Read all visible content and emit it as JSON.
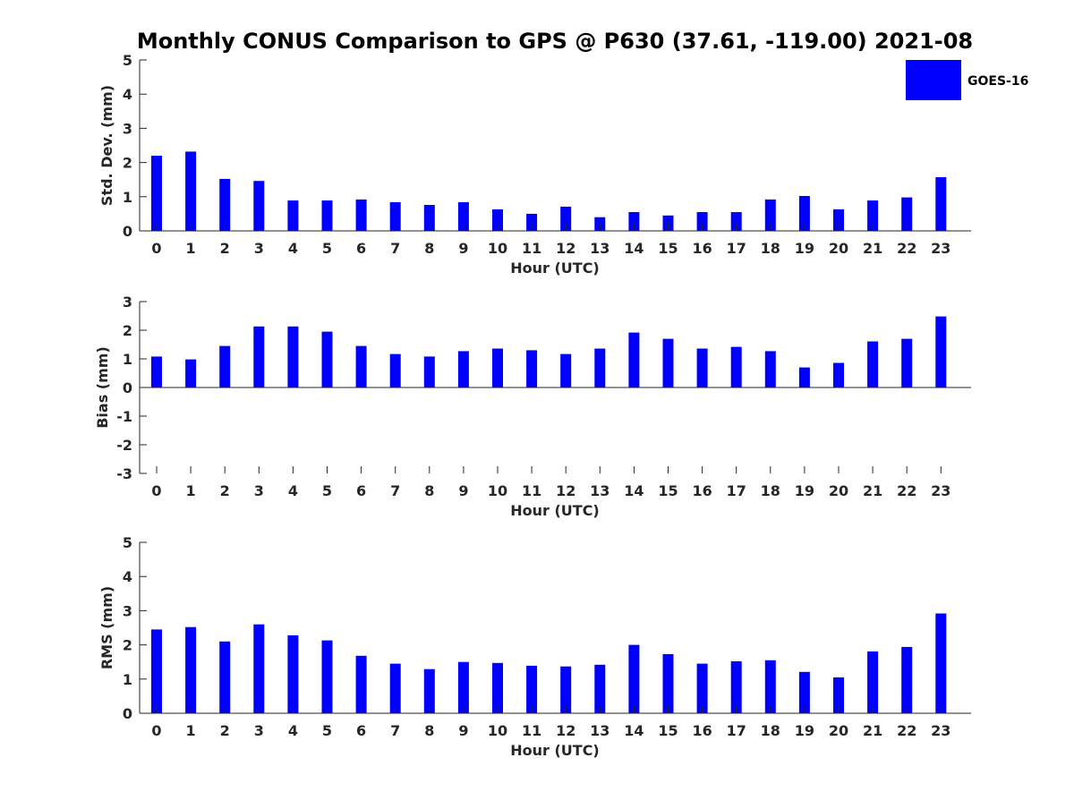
{
  "chart_data": {
    "title": "Monthly CONUS Comparison to GPS @ P630 (37.61, -119.00) 2021-08",
    "type": "bar",
    "legend": {
      "label": "GOES-16",
      "placement": "top-right",
      "color": "#0000ff"
    },
    "bar_color": "#0000ff",
    "categories": [
      "0",
      "1",
      "2",
      "3",
      "4",
      "5",
      "6",
      "7",
      "8",
      "9",
      "10",
      "11",
      "12",
      "13",
      "14",
      "15",
      "16",
      "17",
      "18",
      "19",
      "20",
      "21",
      "22",
      "23"
    ],
    "panels": [
      {
        "xlabel": "Hour (UTC)",
        "ylabel": "Std. Dev. (mm)",
        "ylim": [
          0,
          5
        ],
        "yticks": [
          "0",
          "1",
          "2",
          "3",
          "4",
          "5"
        ],
        "values": [
          2.2,
          2.32,
          1.52,
          1.46,
          0.89,
          0.89,
          0.92,
          0.84,
          0.76,
          0.84,
          0.63,
          0.5,
          0.71,
          0.4,
          0.55,
          0.45,
          0.55,
          0.55,
          0.92,
          1.02,
          0.63,
          0.89,
          0.98,
          1.57
        ]
      },
      {
        "xlabel": "Hour (UTC)",
        "ylabel": "Bias (mm)",
        "ylim": [
          -3,
          3
        ],
        "yticks": [
          "-3",
          "-2",
          "-1",
          "0",
          "1",
          "2",
          "3"
        ],
        "values": [
          1.08,
          0.98,
          1.45,
          2.13,
          2.13,
          1.95,
          1.45,
          1.17,
          1.08,
          1.27,
          1.36,
          1.3,
          1.17,
          1.36,
          1.92,
          1.7,
          1.36,
          1.42,
          1.27,
          0.7,
          0.86,
          1.61,
          1.7,
          2.48
        ]
      },
      {
        "xlabel": "Hour (UTC)",
        "ylabel": "RMS (mm)",
        "ylim": [
          0,
          5
        ],
        "yticks": [
          "0",
          "1",
          "2",
          "3",
          "4",
          "5"
        ],
        "values": [
          2.45,
          2.52,
          2.1,
          2.6,
          2.28,
          2.13,
          1.68,
          1.45,
          1.29,
          1.5,
          1.47,
          1.39,
          1.37,
          1.42,
          2.0,
          1.73,
          1.45,
          1.52,
          1.55,
          1.21,
          1.05,
          1.81,
          1.94,
          2.92
        ]
      }
    ]
  }
}
